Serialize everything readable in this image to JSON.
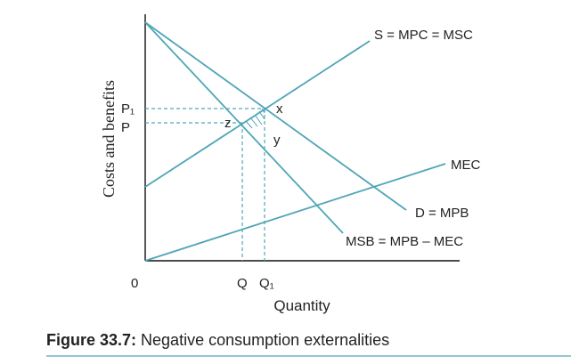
{
  "axes": {
    "y_label": "Costs and benefits",
    "x_label": "Quantity",
    "origin": "0",
    "y_ticks": [
      "P₁",
      "P"
    ],
    "x_ticks": [
      "Q",
      "Q₁"
    ]
  },
  "curves": [
    {
      "label": "S = MPC = MSC"
    },
    {
      "label": "D = MPB"
    },
    {
      "label": "MSB = MPB – MEC"
    },
    {
      "label": "MEC"
    }
  ],
  "points": [
    {
      "label": "x"
    },
    {
      "label": "z"
    },
    {
      "label": "y"
    }
  ],
  "caption": {
    "number": "Figure 33.7:",
    "title": "Negative consumption externalities"
  }
}
